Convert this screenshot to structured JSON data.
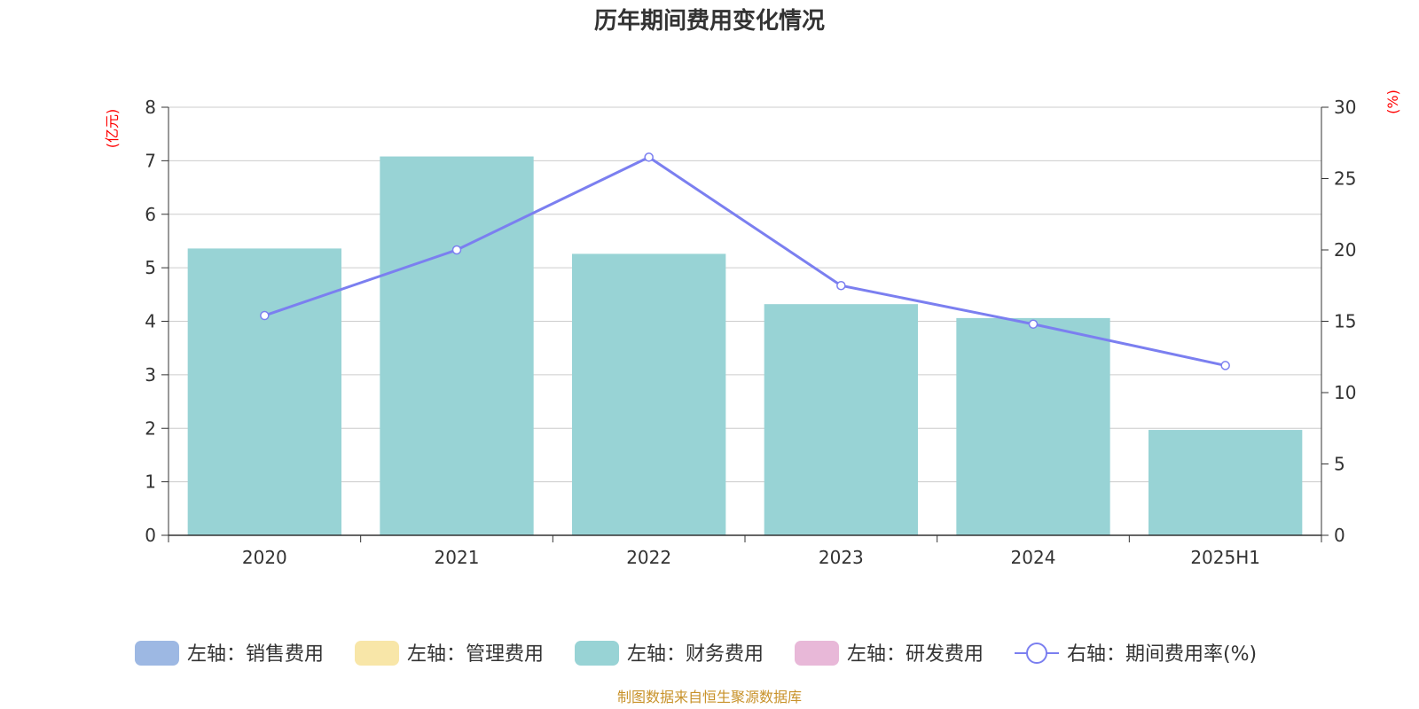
{
  "chart_data": {
    "type": "bar",
    "title": "历年期间费用变化情况",
    "left_axis_unit": "(亿元)",
    "right_axis_unit": "(%)",
    "categories": [
      "2020",
      "2021",
      "2022",
      "2023",
      "2024",
      "2025H1"
    ],
    "left_ylim": [
      0,
      8
    ],
    "left_ticks": [
      "0",
      "1",
      "2",
      "3",
      "4",
      "5",
      "6",
      "7",
      "8"
    ],
    "right_ylim": [
      0,
      30
    ],
    "right_ticks": [
      "0",
      "5",
      "10",
      "15",
      "20",
      "25",
      "30"
    ],
    "grid": true,
    "legend_position": "bottom",
    "series": [
      {
        "name": "左轴：销售费用",
        "type": "bar",
        "axis": "left",
        "color": "#9db8e3",
        "values": [
          null,
          null,
          null,
          null,
          null,
          null
        ]
      },
      {
        "name": "左轴：管理费用",
        "type": "bar",
        "axis": "left",
        "color": "#f8e6a8",
        "values": [
          null,
          null,
          null,
          null,
          null,
          null
        ]
      },
      {
        "name": "左轴：财务费用",
        "type": "bar",
        "axis": "left",
        "color": "#98d3d5",
        "values": [
          5.36,
          7.08,
          5.26,
          4.32,
          4.06,
          1.97
        ]
      },
      {
        "name": "左轴：研发费用",
        "type": "bar",
        "axis": "left",
        "color": "#e8b8d8",
        "values": [
          null,
          null,
          null,
          null,
          null,
          null
        ]
      },
      {
        "name": "右轴：期间费用率(%)",
        "type": "line",
        "axis": "right",
        "color": "#7b7ff0",
        "values": [
          15.4,
          20.0,
          26.5,
          17.5,
          14.8,
          11.9
        ]
      }
    ]
  },
  "footer": {
    "source": "制图数据来自恒生聚源数据库"
  }
}
